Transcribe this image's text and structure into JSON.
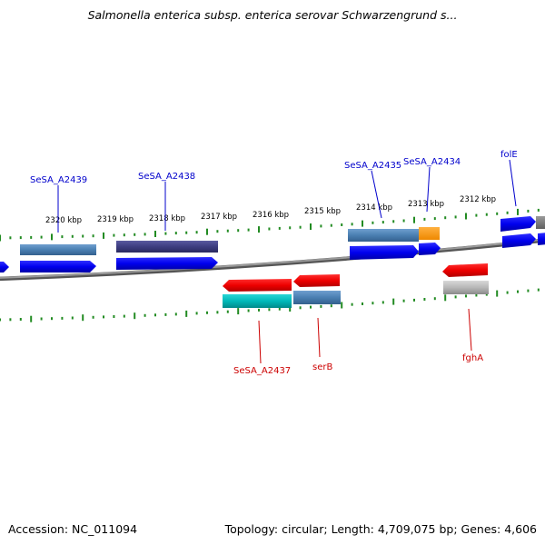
{
  "title": "Salmonella enterica subsp. enterica serovar Schwarzengrund s...",
  "footer": {
    "accession": "Accession: NC_011094",
    "topology": "Topology: circular; Length: 4,709,075 bp; Genes: 4,606"
  },
  "kbp_labels": [
    "2320 kbp",
    "2319 kbp",
    "2318 kbp",
    "2317 kbp",
    "2316 kbp",
    "2315 kbp",
    "2314 kbp",
    "2313 kbp",
    "2312 kbp"
  ],
  "genes_top": [
    "SeSA_A2439",
    "SeSA_A2438",
    "SeSA_A2435",
    "SeSA_A2434",
    "folE"
  ],
  "genes_bottom": [
    "SeSA_A2437",
    "serB",
    "fghA"
  ],
  "colors": {
    "forward_strand": "#0000ee",
    "reverse_strand": "#ee0000",
    "forward_label": "#0000cc",
    "reverse_label": "#cc0000",
    "ticks": "#228b22",
    "backbone": "#808080"
  }
}
